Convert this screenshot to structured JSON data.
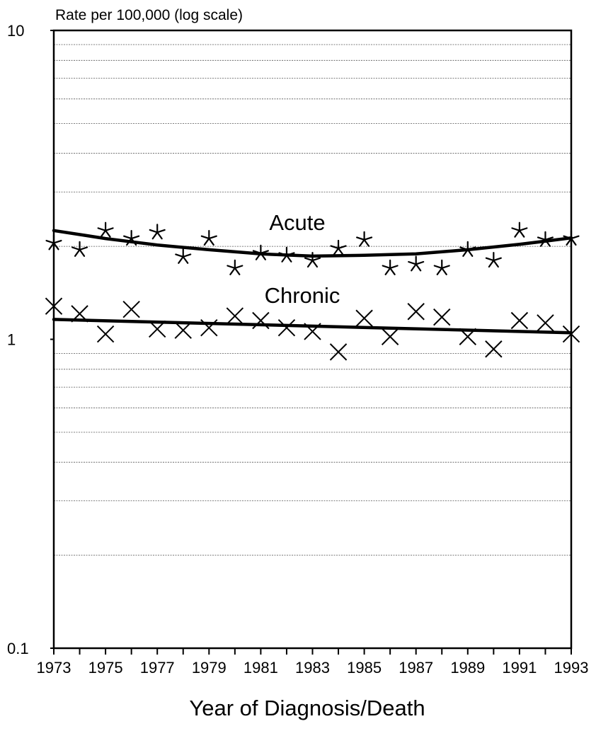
{
  "chart_data": {
    "type": "line",
    "ylabel": "Rate per 100,000 (log scale)",
    "xlabel": "Year of Diagnosis/Death",
    "yscale": "log",
    "ylim": [
      0.1,
      10
    ],
    "xlim": [
      1973,
      1993
    ],
    "y_ticks": [
      "10",
      "1",
      "0.1"
    ],
    "x_ticks": [
      "1973",
      "1975",
      "1977",
      "1979",
      "1981",
      "1983",
      "1985",
      "1987",
      "1989",
      "1991",
      "1993"
    ],
    "grid": "horizontal, dashed",
    "series": [
      {
        "name": "Acute",
        "marker": "star",
        "x": [
          1973,
          1974,
          1975,
          1976,
          1977,
          1978,
          1979,
          1980,
          1981,
          1982,
          1983,
          1984,
          1985,
          1986,
          1987,
          1988,
          1989,
          1990,
          1991,
          1992,
          1993
        ],
        "values": [
          2.05,
          1.95,
          2.25,
          2.12,
          2.22,
          1.85,
          2.12,
          1.7,
          1.9,
          1.87,
          1.8,
          1.97,
          2.1,
          1.7,
          1.75,
          1.7,
          1.95,
          1.8,
          2.25,
          2.1,
          2.12
        ],
        "trend_x": [
          1973,
          1975,
          1977,
          1979,
          1981,
          1983,
          1985,
          1987,
          1989,
          1991,
          1993
        ],
        "trend": [
          2.25,
          2.12,
          2.02,
          1.95,
          1.89,
          1.86,
          1.87,
          1.89,
          1.95,
          2.03,
          2.13
        ]
      },
      {
        "name": "Chronic",
        "marker": "x",
        "x": [
          1973,
          1974,
          1975,
          1976,
          1977,
          1978,
          1979,
          1980,
          1981,
          1982,
          1983,
          1984,
          1985,
          1986,
          1987,
          1988,
          1989,
          1990,
          1991,
          1992,
          1993
        ],
        "values": [
          1.28,
          1.21,
          1.04,
          1.25,
          1.08,
          1.07,
          1.09,
          1.19,
          1.15,
          1.09,
          1.06,
          0.91,
          1.17,
          1.02,
          1.23,
          1.18,
          1.02,
          0.93,
          1.15,
          1.13,
          1.04
        ],
        "trend_x": [
          1973,
          1993
        ],
        "trend": [
          1.16,
          1.05
        ]
      }
    ]
  }
}
